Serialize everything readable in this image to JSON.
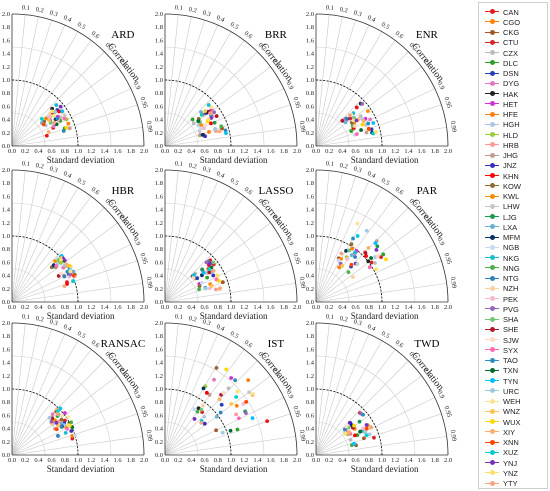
{
  "chart_data": [
    {
      "type": "scatter",
      "title": "ARD",
      "variant": "normal",
      "xlabel": "Standard deviation",
      "corr_label": "Correlation",
      "std_ticks": [
        "0.0",
        "0.2",
        "0.4",
        "0.6",
        "0.8",
        "1.0",
        "1.2",
        "1.4",
        "1.6",
        "1.8",
        "2.0"
      ],
      "corr_ticks": [
        "0.1",
        "0.2",
        "0.3",
        "0.4",
        "0.5",
        "0.6",
        "0.7",
        "0.8",
        "0.9",
        "0.95",
        "0.99"
      ],
      "ref_std": 1.0
    },
    {
      "type": "scatter",
      "title": "BRR",
      "variant": "normal",
      "xlabel": "Standard deviation",
      "corr_label": "Correlation",
      "std_ticks": [
        "0.0",
        "0.2",
        "0.4",
        "0.6",
        "0.8",
        "1.0",
        "1.2",
        "1.4",
        "1.6",
        "1.8",
        "2.0"
      ],
      "corr_ticks": [
        "0.1",
        "0.2",
        "0.3",
        "0.4",
        "0.5",
        "0.6",
        "0.7",
        "0.8",
        "0.9",
        "0.95",
        "0.99"
      ],
      "ref_std": 1.0
    },
    {
      "type": "scatter",
      "title": "ENR",
      "variant": "normal",
      "xlabel": "Standard deviation",
      "corr_label": "Correlation",
      "std_ticks": [
        "0.0",
        "0.2",
        "0.4",
        "0.6",
        "0.8",
        "1.0",
        "1.2",
        "1.4",
        "1.6",
        "1.8",
        "2.0"
      ],
      "corr_ticks": [
        "0.1",
        "0.2",
        "0.3",
        "0.4",
        "0.5",
        "0.6",
        "0.7",
        "0.8",
        "0.9",
        "0.95",
        "0.99"
      ],
      "ref_std": 1.0
    },
    {
      "type": "scatter",
      "title": "HBR",
      "variant": "hbr",
      "xlabel": "Standard deviation",
      "corr_label": "Correlation",
      "std_ticks": [
        "0.0",
        "0.2",
        "0.4",
        "0.6",
        "0.8",
        "1.0",
        "1.2",
        "1.4",
        "1.6",
        "1.8",
        "2.0"
      ],
      "corr_ticks": [
        "0.1",
        "0.2",
        "0.3",
        "0.4",
        "0.5",
        "0.6",
        "0.7",
        "0.8",
        "0.9",
        "0.95",
        "0.99"
      ],
      "ref_std": 1.0
    },
    {
      "type": "scatter",
      "title": "LASSO",
      "variant": "normal",
      "xlabel": "Standard deviation",
      "corr_label": "Correlation",
      "std_ticks": [
        "0.0",
        "0.2",
        "0.4",
        "0.6",
        "0.8",
        "1.0",
        "1.2",
        "1.4",
        "1.6",
        "1.8",
        "2.0"
      ],
      "corr_ticks": [
        "0.1",
        "0.2",
        "0.3",
        "0.4",
        "0.5",
        "0.6",
        "0.7",
        "0.8",
        "0.9",
        "0.95",
        "0.99"
      ],
      "ref_std": 1.0
    },
    {
      "type": "scatter",
      "title": "PAR",
      "variant": "par",
      "xlabel": "Standard deviation",
      "corr_label": "Correlation",
      "std_ticks": [
        "0.0",
        "0.2",
        "0.4",
        "0.6",
        "0.8",
        "1.0",
        "1.2",
        "1.4",
        "1.6",
        "1.8",
        "2.0"
      ],
      "corr_ticks": [
        "0.1",
        "0.2",
        "0.3",
        "0.4",
        "0.5",
        "0.6",
        "0.7",
        "0.8",
        "0.9",
        "0.95",
        "0.99"
      ],
      "ref_std": 1.0
    },
    {
      "type": "scatter",
      "title": "RANSAC",
      "variant": "ransac",
      "xlabel": "Standard deviation",
      "corr_label": "Correlation",
      "std_ticks": [
        "0.0",
        "0.2",
        "0.4",
        "0.6",
        "0.8",
        "1.0",
        "1.2",
        "1.4",
        "1.6",
        "1.8",
        "2.0"
      ],
      "corr_ticks": [
        "0.1",
        "0.2",
        "0.3",
        "0.4",
        "0.5",
        "0.6",
        "0.7",
        "0.8",
        "0.9",
        "0.95",
        "0.99"
      ],
      "ref_std": 1.0
    },
    {
      "type": "scatter",
      "title": "IST",
      "variant": "ist",
      "xlabel": "Standard deviation",
      "corr_label": "Correlation",
      "std_ticks": [
        "0.0",
        "0.2",
        "0.4",
        "0.6",
        "0.8",
        "1.0",
        "1.2",
        "1.4",
        "1.6",
        "1.8",
        "2.0"
      ],
      "corr_ticks": [
        "0.1",
        "0.2",
        "0.3",
        "0.4",
        "0.5",
        "0.6",
        "0.7",
        "0.8",
        "0.9",
        "0.95",
        "0.99"
      ],
      "ref_std": 1.0
    },
    {
      "type": "scatter",
      "title": "TWD",
      "variant": "normal",
      "xlabel": "Standard deviation",
      "corr_label": "Correlation",
      "std_ticks": [
        "0.0",
        "0.2",
        "0.4",
        "0.6",
        "0.8",
        "1.0",
        "1.2",
        "1.4",
        "1.6",
        "1.8",
        "2.0"
      ],
      "corr_ticks": [
        "0.1",
        "0.2",
        "0.3",
        "0.4",
        "0.5",
        "0.6",
        "0.7",
        "0.8",
        "0.9",
        "0.95",
        "0.99"
      ],
      "ref_std": 1.0
    }
  ],
  "legend": [
    {
      "label": "CAN",
      "color": "#e41a1c"
    },
    {
      "label": "CGO",
      "color": "#ff7f00"
    },
    {
      "label": "CKG",
      "color": "#a65628"
    },
    {
      "label": "CTU",
      "color": "#d62728"
    },
    {
      "label": "CZX",
      "color": "#bbbbbb"
    },
    {
      "label": "DLC",
      "color": "#2ca02c"
    },
    {
      "label": "DSN",
      "color": "#1f3fbf"
    },
    {
      "label": "DYG",
      "color": "#e377c2"
    },
    {
      "label": "HAK",
      "color": "#222222"
    },
    {
      "label": "HET",
      "color": "#d62fd6"
    },
    {
      "label": "HFE",
      "color": "#ff7f0e"
    },
    {
      "label": "HGH",
      "color": "#aec7e8"
    },
    {
      "label": "HLD",
      "color": "#9acd32"
    },
    {
      "label": "HRB",
      "color": "#ff9896"
    },
    {
      "label": "JHG",
      "color": "#c49c94"
    },
    {
      "label": "JNZ",
      "color": "#3b2fbf"
    },
    {
      "label": "KHN",
      "color": "#ff0000"
    },
    {
      "label": "KOW",
      "color": "#8c6d31"
    },
    {
      "label": "KWL",
      "color": "#ff8c00"
    },
    {
      "label": "LHW",
      "color": "#c7c7c7"
    },
    {
      "label": "LJG",
      "color": "#1a9850"
    },
    {
      "label": "LXA",
      "color": "#6baed6"
    },
    {
      "label": "MFM",
      "color": "#08306b"
    },
    {
      "label": "NGB",
      "color": "#c6dbef"
    },
    {
      "label": "NKG",
      "color": "#17becf"
    },
    {
      "label": "NNG",
      "color": "#4daf4a"
    },
    {
      "label": "NTG",
      "color": "#3182bd"
    },
    {
      "label": "NZH",
      "color": "#fdd0a2"
    },
    {
      "label": "PEK",
      "color": "#f7b6d2"
    },
    {
      "label": "PVG",
      "color": "#9467bd"
    },
    {
      "label": "SHA",
      "color": "#74c476"
    },
    {
      "label": "SHE",
      "color": "#b2182b"
    },
    {
      "label": "SJW",
      "color": "#fddbc7"
    },
    {
      "label": "SYX",
      "color": "#ff69b4"
    },
    {
      "label": "TAO",
      "color": "#2b8cbe"
    },
    {
      "label": "TXN",
      "color": "#006d2c"
    },
    {
      "label": "TYN",
      "color": "#00bfff"
    },
    {
      "label": "URC",
      "color": "#9ecae1"
    },
    {
      "label": "WEH",
      "color": "#fee391"
    },
    {
      "label": "WNZ",
      "color": "#fec44f"
    },
    {
      "label": "WUX",
      "color": "#ffd700"
    },
    {
      "label": "XIY",
      "color": "#fdae6b"
    },
    {
      "label": "XNN",
      "color": "#ff4500"
    },
    {
      "label": "XUZ",
      "color": "#00ced1"
    },
    {
      "label": "YNJ",
      "color": "#7b2fbf"
    },
    {
      "label": "YNZ",
      "color": "#ffe066"
    },
    {
      "label": "YTY",
      "color": "#f4a582"
    }
  ]
}
